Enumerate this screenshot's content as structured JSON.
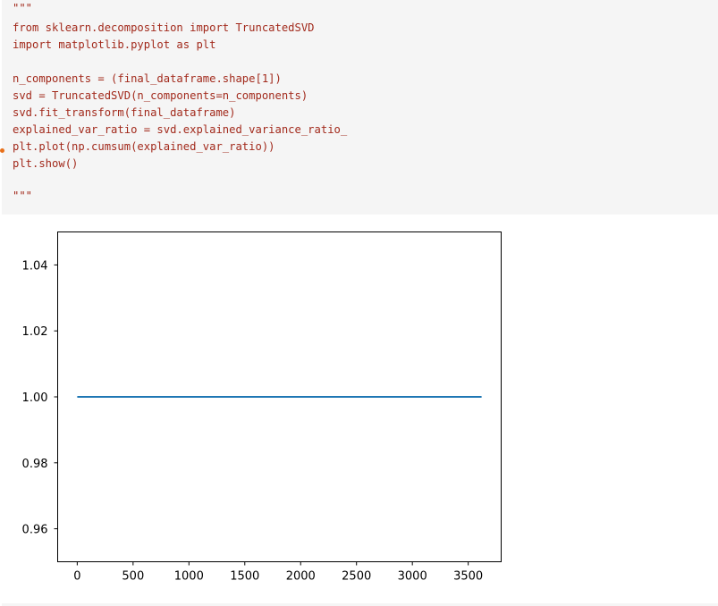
{
  "code_cell": {
    "lines": [
      "\"\"\"",
      "from sklearn.decomposition import TruncatedSVD",
      "import matplotlib.pyplot as plt",
      "",
      "n_components = (final_dataframe.shape[1])",
      "svd = TruncatedSVD(n_components=n_components)",
      "svd.fit_transform(final_dataframe)",
      "explained_var_ratio = svd.explained_variance_ratio_",
      "plt.plot(np.cumsum(explained_var_ratio))",
      "plt.show()",
      "",
      "\"\"\""
    ]
  },
  "chart_data": {
    "type": "line",
    "title": "",
    "xlabel": "",
    "ylabel": "",
    "xlim": [
      -175,
      3795
    ],
    "ylim": [
      0.95,
      1.05
    ],
    "xticks": [
      0,
      500,
      1000,
      1500,
      2000,
      2500,
      3000,
      3500
    ],
    "xtick_labels": [
      "0",
      "500",
      "1000",
      "1500",
      "2000",
      "2500",
      "3000",
      "3500"
    ],
    "yticks": [
      0.96,
      0.98,
      1.0,
      1.02,
      1.04
    ],
    "ytick_labels": [
      "0.96",
      "0.98",
      "1.00",
      "1.02",
      "1.04"
    ],
    "grid": false,
    "series": [
      {
        "color": "#1f77b4",
        "x": [
          0,
          3620
        ],
        "y": [
          1.0,
          1.0
        ]
      }
    ]
  }
}
